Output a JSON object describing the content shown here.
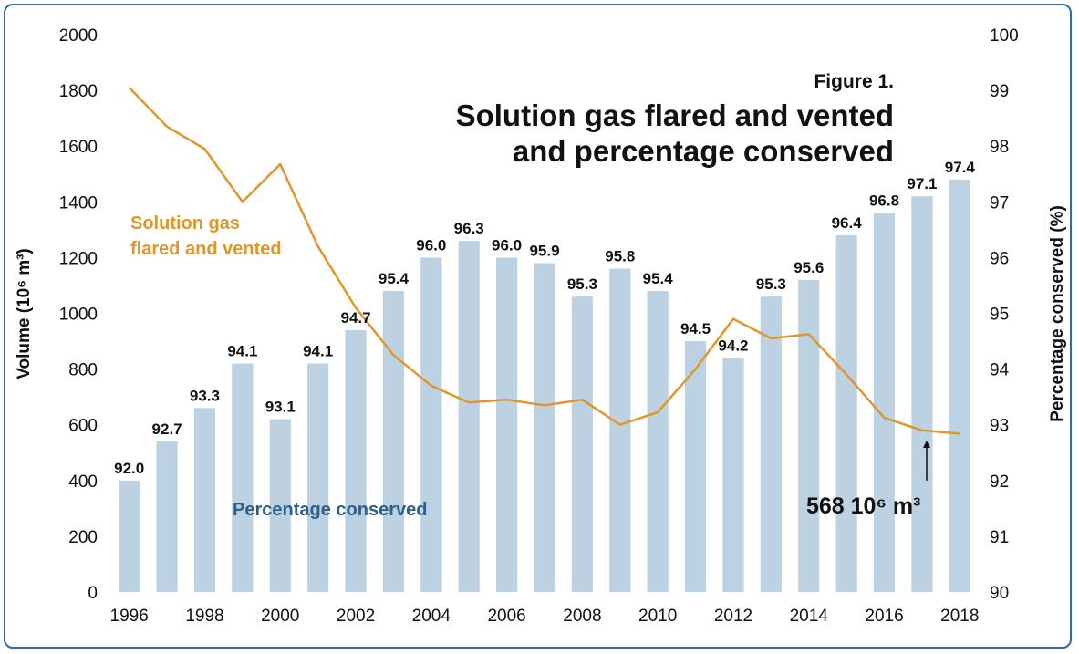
{
  "chart_data": {
    "type": "bar+line",
    "figure_label": "Figure 1.",
    "title_lines": [
      "Solution gas flared and vented",
      "and percentage conserved"
    ],
    "ylabel_left": "Volume (10⁶ m³)",
    "ylabel_right": "Percentage conserved (%)",
    "ylim_left": [
      0,
      2000
    ],
    "ylim_right": [
      90,
      100
    ],
    "left_ticks": [
      "0",
      "200",
      "400",
      "600",
      "800",
      "1000",
      "1200",
      "1400",
      "1600",
      "1800",
      "2000"
    ],
    "right_ticks": [
      "90",
      "91",
      "92",
      "93",
      "94",
      "95",
      "96",
      "97",
      "98",
      "99",
      "100"
    ],
    "x": [
      1996,
      1997,
      1998,
      1999,
      2000,
      2001,
      2002,
      2003,
      2004,
      2005,
      2006,
      2007,
      2008,
      2009,
      2010,
      2011,
      2012,
      2013,
      2014,
      2015,
      2016,
      2017,
      2018
    ],
    "x_tick_labels": [
      "1996",
      "1998",
      "2000",
      "2002",
      "2004",
      "2006",
      "2008",
      "2010",
      "2012",
      "2014",
      "2016",
      "2018"
    ],
    "series": [
      {
        "name": "Percentage conserved",
        "kind": "bar",
        "axis": "right",
        "color": "#bcd2e2",
        "values": [
          92.0,
          92.7,
          93.3,
          94.1,
          93.1,
          94.1,
          94.7,
          95.4,
          96.0,
          96.3,
          96.0,
          95.9,
          95.3,
          95.8,
          95.4,
          94.5,
          94.2,
          95.3,
          95.6,
          96.4,
          96.8,
          97.1,
          97.4
        ],
        "labels": [
          "92.0",
          "92.7",
          "93.3",
          "94.1",
          "93.1",
          "94.1",
          "94.7",
          "95.4",
          "96.0",
          "96.3",
          "96.0",
          "95.9",
          "95.3",
          "95.8",
          "95.4",
          "94.5",
          "94.2",
          "95.3",
          "95.6",
          "96.4",
          "96.8",
          "97.1",
          "97.4"
        ]
      },
      {
        "name": "Solution gas flared and vented",
        "kind": "line",
        "axis": "left",
        "color": "#e0962a",
        "values": [
          1810,
          1670,
          1590,
          1400,
          1535,
          1240,
          1020,
          850,
          740,
          680,
          690,
          670,
          690,
          600,
          645,
          800,
          980,
          910,
          925,
          780,
          625,
          580,
          568
        ]
      }
    ],
    "annotations": {
      "line_label_1": "Solution gas",
      "line_label_2": "flared and vented",
      "bar_label": "Percentage conserved",
      "value_note": "568 10⁶ m³"
    },
    "grid": false,
    "legend": "none"
  }
}
